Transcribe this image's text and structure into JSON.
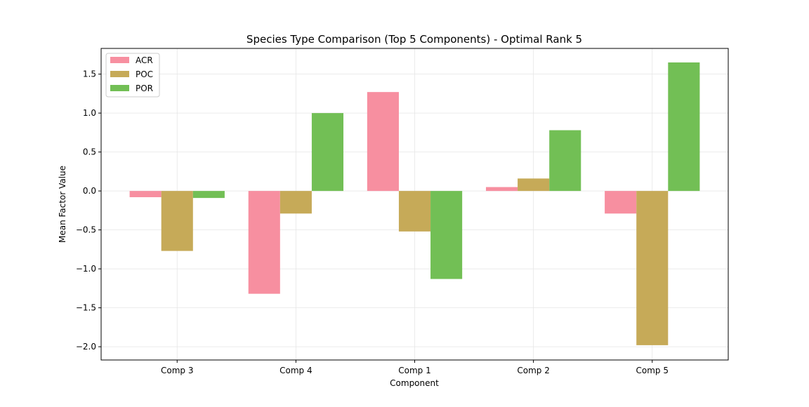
{
  "chart_data": {
    "type": "bar",
    "title": "Species Type Comparison (Top 5 Components) - Optimal Rank 5",
    "xlabel": "Component",
    "ylabel": "Mean Factor Value",
    "categories": [
      "Comp 3",
      "Comp 4",
      "Comp 1",
      "Comp 2",
      "Comp 5"
    ],
    "series": [
      {
        "name": "ACR",
        "color": "#f78fa0",
        "values": [
          -0.08,
          -1.32,
          1.27,
          0.05,
          -0.29
        ]
      },
      {
        "name": "POC",
        "color": "#c6aa58",
        "values": [
          -0.77,
          -0.29,
          -0.52,
          0.16,
          -1.98
        ]
      },
      {
        "name": "POR",
        "color": "#72bf55",
        "values": [
          -0.09,
          1.0,
          -1.13,
          0.78,
          1.65
        ]
      }
    ],
    "ylim": [
      -2.17,
      1.83
    ],
    "yticks": [
      -2.0,
      -1.5,
      -1.0,
      -0.5,
      0.0,
      0.5,
      1.0,
      1.5
    ],
    "ytick_labels": [
      "−2.0",
      "−1.5",
      "−1.0",
      "−0.5",
      "0.0",
      "0.5",
      "1.0",
      "1.5"
    ],
    "grid": true,
    "legend_position": "top-left"
  }
}
